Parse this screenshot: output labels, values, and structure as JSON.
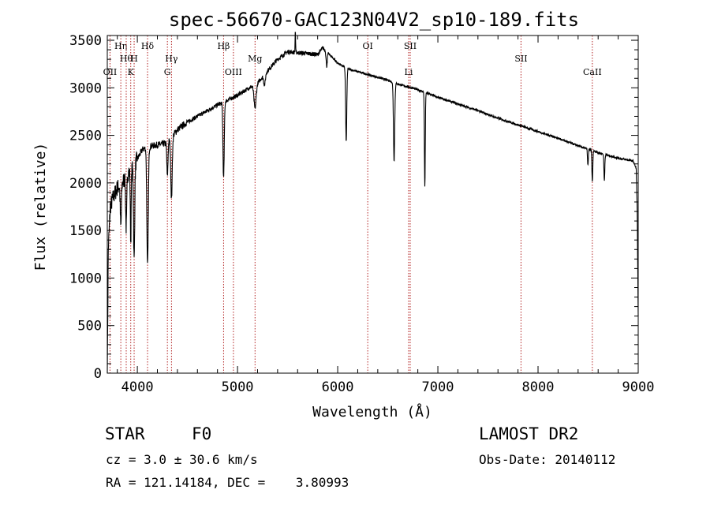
{
  "chart_data": {
    "type": "line",
    "title": "spec-56670-GAC123N04V2_sp10-189.fits",
    "xlabel": "Wavelength (Å)",
    "ylabel": "Flux (relative)",
    "xlim": [
      3700,
      9000
    ],
    "ylim": [
      0,
      3550
    ],
    "x_ticks": [
      4000,
      5000,
      6000,
      7000,
      8000,
      9000
    ],
    "y_ticks": [
      0,
      500,
      1000,
      1500,
      2000,
      2500,
      3000,
      3500
    ],
    "x_tick_labels": [
      "4000",
      "5000",
      "6000",
      "7000",
      "8000",
      "9000"
    ],
    "y_tick_labels": [
      "0",
      "500",
      "1000",
      "1500",
      "2000",
      "2500",
      "3000",
      "3500"
    ],
    "grid": false,
    "line_color": "#000000",
    "marker_color": "#b22222",
    "continuum": [
      [
        3700,
        0
      ],
      [
        3710,
        1300
      ],
      [
        3730,
        1750
      ],
      [
        3760,
        1850
      ],
      [
        3800,
        1950
      ],
      [
        3850,
        2000
      ],
      [
        3900,
        2100
      ],
      [
        3950,
        2150
      ],
      [
        4000,
        2250
      ],
      [
        4050,
        2350
      ],
      [
        4100,
        2380
      ],
      [
        4200,
        2400
      ],
      [
        4300,
        2420
      ],
      [
        4400,
        2560
      ],
      [
        4500,
        2640
      ],
      [
        4600,
        2700
      ],
      [
        4700,
        2760
      ],
      [
        4800,
        2820
      ],
      [
        4900,
        2870
      ],
      [
        5000,
        2920
      ],
      [
        5100,
        2990
      ],
      [
        5200,
        3050
      ],
      [
        5300,
        3180
      ],
      [
        5400,
        3300
      ],
      [
        5500,
        3380
      ],
      [
        5600,
        3370
      ],
      [
        5700,
        3360
      ],
      [
        5800,
        3350
      ],
      [
        5850,
        3420
      ],
      [
        5900,
        3370
      ],
      [
        6000,
        3260
      ],
      [
        6100,
        3200
      ],
      [
        6200,
        3170
      ],
      [
        6300,
        3140
      ],
      [
        6400,
        3110
      ],
      [
        6500,
        3080
      ],
      [
        6600,
        3040
      ],
      [
        6700,
        3010
      ],
      [
        6800,
        2980
      ],
      [
        6900,
        2940
      ],
      [
        7000,
        2900
      ],
      [
        7200,
        2830
      ],
      [
        7400,
        2760
      ],
      [
        7600,
        2680
      ],
      [
        7800,
        2610
      ],
      [
        8000,
        2540
      ],
      [
        8200,
        2470
      ],
      [
        8400,
        2390
      ],
      [
        8600,
        2320
      ],
      [
        8800,
        2260
      ],
      [
        8950,
        2230
      ],
      [
        8980,
        2150
      ],
      [
        8990,
        1700
      ],
      [
        9000,
        600
      ]
    ],
    "absorption_features": [
      {
        "x": 3835,
        "depth": 450,
        "width": 8
      },
      {
        "x": 3889,
        "depth": 550,
        "width": 8
      },
      {
        "x": 3934,
        "depth": 750,
        "width": 6
      },
      {
        "x": 3968,
        "depth": 1000,
        "width": 8
      },
      {
        "x": 4102,
        "depth": 1250,
        "width": 10
      },
      {
        "x": 4300,
        "depth": 350,
        "width": 8
      },
      {
        "x": 4341,
        "depth": 650,
        "width": 10
      },
      {
        "x": 4861,
        "depth": 800,
        "width": 9
      },
      {
        "x": 5175,
        "depth": 250,
        "width": 15
      },
      {
        "x": 5270,
        "depth": 110,
        "width": 12
      },
      {
        "x": 5890,
        "depth": 150,
        "width": 8
      },
      {
        "x": 6085,
        "depth": 780,
        "width": 8
      },
      {
        "x": 6563,
        "depth": 820,
        "width": 9
      },
      {
        "x": 6870,
        "depth": 1000,
        "width": 6
      },
      {
        "x": 8498,
        "depth": 170,
        "width": 6
      },
      {
        "x": 8542,
        "depth": 330,
        "width": 6
      },
      {
        "x": 8662,
        "depth": 280,
        "width": 6
      }
    ],
    "emission_spikes": [
      {
        "x": 5577,
        "height": 320
      }
    ],
    "line_markers": [
      {
        "x": 3727,
        "label": "OII",
        "row": 3
      },
      {
        "x": 3835,
        "label": "Hη",
        "row": 1
      },
      {
        "x": 3889,
        "label": "Hθ",
        "row": 2
      },
      {
        "x": 3934,
        "label": "K",
        "row": 3
      },
      {
        "x": 3968,
        "label": "H",
        "row": 2
      },
      {
        "x": 4102,
        "label": "Hδ",
        "row": 1
      },
      {
        "x": 4300,
        "label": "G",
        "row": 3
      },
      {
        "x": 4341,
        "label": "Hγ",
        "row": 2
      },
      {
        "x": 4861,
        "label": "Hβ",
        "row": 1
      },
      {
        "x": 4959,
        "label": "OIII",
        "row": 3
      },
      {
        "x": 5175,
        "label": "Mg",
        "row": 2
      },
      {
        "x": 6300,
        "label": "OI",
        "row": 1
      },
      {
        "x": 6708,
        "label": "Li",
        "row": 3
      },
      {
        "x": 6724,
        "label": "SII",
        "row": 1
      },
      {
        "x": 7830,
        "label": "SII",
        "row": 2
      },
      {
        "x": 8542,
        "label": "CaII",
        "row": 3
      }
    ]
  },
  "info": {
    "object_class": "STAR",
    "subclass": "F0",
    "survey": "LAMOST DR2",
    "redshift": "cz = 3.0 ± 30.6 km/s",
    "obs_date": "Obs-Date: 20140112",
    "coords": "RA = 121.14184, DEC =    3.80993"
  }
}
